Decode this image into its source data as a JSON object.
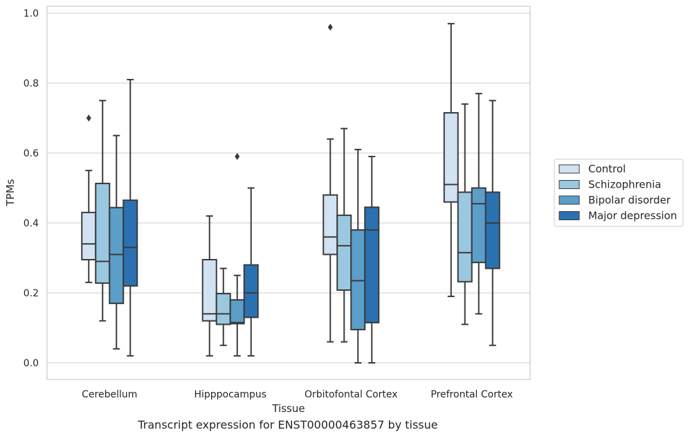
{
  "caption": "Transcript expression for ENST00000463857 by tissue",
  "chart_data": {
    "type": "boxplot",
    "xlabel": "Tissue",
    "ylabel": "TPMs",
    "ylim": [
      -0.045,
      1.02
    ],
    "yticks": [
      "0.0",
      "0.2",
      "0.4",
      "0.6",
      "0.8",
      "1.0"
    ],
    "ytick_values": [
      0.0,
      0.2,
      0.4,
      0.6,
      0.8,
      1.0
    ],
    "grid": true,
    "legend_position": "right",
    "categories": [
      "Cerebellum",
      "Hipppocampus",
      "Orbitofontal Cortex",
      "Prefrontal Cortex"
    ],
    "series": [
      {
        "name": "Control",
        "color": "#d1e2f2",
        "boxes": [
          {
            "whislo": 0.23,
            "q1": 0.295,
            "med": 0.34,
            "q3": 0.43,
            "whishi": 0.55,
            "fliers": [
              0.7
            ]
          },
          {
            "whislo": 0.02,
            "q1": 0.12,
            "med": 0.14,
            "q3": 0.295,
            "whishi": 0.42,
            "fliers": []
          },
          {
            "whislo": 0.06,
            "q1": 0.31,
            "med": 0.36,
            "q3": 0.48,
            "whishi": 0.64,
            "fliers": [
              0.96
            ]
          },
          {
            "whislo": 0.19,
            "q1": 0.46,
            "med": 0.51,
            "q3": 0.715,
            "whishi": 0.97,
            "fliers": []
          }
        ]
      },
      {
        "name": "Schizophrenia",
        "color": "#9ac8e0",
        "boxes": [
          {
            "whislo": 0.12,
            "q1": 0.228,
            "med": 0.29,
            "q3": 0.513,
            "whishi": 0.75,
            "fliers": []
          },
          {
            "whislo": 0.05,
            "q1": 0.11,
            "med": 0.14,
            "q3": 0.198,
            "whishi": 0.27,
            "fliers": []
          },
          {
            "whislo": 0.06,
            "q1": 0.208,
            "med": 0.335,
            "q3": 0.422,
            "whishi": 0.67,
            "fliers": []
          },
          {
            "whislo": 0.11,
            "q1": 0.232,
            "med": 0.315,
            "q3": 0.488,
            "whishi": 0.74,
            "fliers": []
          }
        ]
      },
      {
        "name": "Bipolar disorder",
        "color": "#5a9ec9",
        "boxes": [
          {
            "whislo": 0.04,
            "q1": 0.17,
            "med": 0.31,
            "q3": 0.444,
            "whishi": 0.65,
            "fliers": []
          },
          {
            "whislo": 0.02,
            "q1": 0.112,
            "med": 0.115,
            "q3": 0.18,
            "whishi": 0.25,
            "fliers": [
              0.59
            ]
          },
          {
            "whislo": 0.0,
            "q1": 0.095,
            "med": 0.235,
            "q3": 0.38,
            "whishi": 0.61,
            "fliers": []
          },
          {
            "whislo": 0.14,
            "q1": 0.287,
            "med": 0.455,
            "q3": 0.5,
            "whishi": 0.77,
            "fliers": []
          }
        ]
      },
      {
        "name": "Major depression",
        "color": "#2a71b1",
        "boxes": [
          {
            "whislo": 0.02,
            "q1": 0.22,
            "med": 0.33,
            "q3": 0.465,
            "whishi": 0.81,
            "fliers": []
          },
          {
            "whislo": 0.02,
            "q1": 0.13,
            "med": 0.2,
            "q3": 0.28,
            "whishi": 0.5,
            "fliers": []
          },
          {
            "whislo": 0.0,
            "q1": 0.115,
            "med": 0.38,
            "q3": 0.445,
            "whishi": 0.59,
            "fliers": []
          },
          {
            "whislo": 0.05,
            "q1": 0.27,
            "med": 0.4,
            "q3": 0.488,
            "whishi": 0.75,
            "fliers": []
          }
        ]
      }
    ]
  }
}
